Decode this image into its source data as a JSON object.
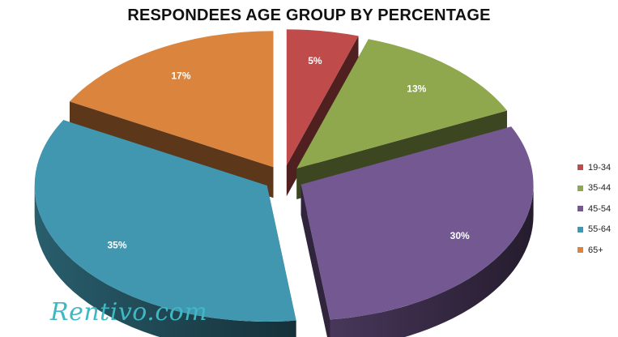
{
  "chart_data": {
    "type": "pie",
    "title": "RESPONDEES AGE GROUP BY PERCENTAGE",
    "categories": [
      "19-34",
      "35-44",
      "45-54",
      "55-64",
      "65+"
    ],
    "values": [
      5,
      13,
      30,
      35,
      17
    ],
    "data_labels": [
      "5%",
      "13%",
      "30%",
      "35%",
      "17%"
    ],
    "colors": [
      "#bf4b4b",
      "#8fa84e",
      "#745891",
      "#4297b0",
      "#db843d"
    ],
    "legend": {
      "placement": "right"
    },
    "style": "3d-exploded"
  },
  "watermark": "Rentivo.com"
}
